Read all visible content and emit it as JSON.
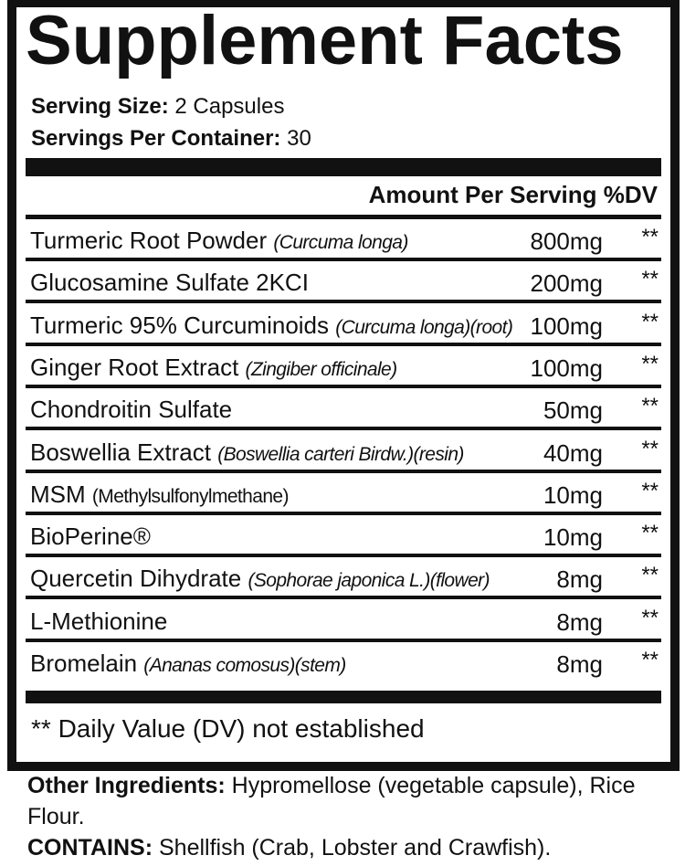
{
  "title": "Supplement Facts",
  "serving": {
    "size_label": "Serving Size:",
    "size_value": "2 Capsules",
    "per_container_label": "Servings Per Container:",
    "per_container_value": "30"
  },
  "header": "Amount Per Serving %DV",
  "rows": [
    {
      "name": "Turmeric Root Powder",
      "detail": "(Curcuma longa)",
      "amount": "800mg",
      "dv": "**"
    },
    {
      "name": "Glucosamine Sulfate 2KCI",
      "amount": "200mg",
      "dv": "**"
    },
    {
      "name": "Turmeric 95% Curcuminoids",
      "detail": "(Curcuma longa)(root)",
      "amount": "100mg",
      "dv": "**"
    },
    {
      "name": "Ginger Root Extract",
      "detail": "(Zingiber officinale)",
      "amount": "100mg",
      "dv": "**"
    },
    {
      "name": "Chondroitin Sulfate",
      "amount": "50mg",
      "dv": "**"
    },
    {
      "name": "Boswellia Extract",
      "detail": "(Boswellia carteri Birdw.)(resin)",
      "amount": "40mg",
      "dv": "**"
    },
    {
      "name": "MSM",
      "detail": "(Methylsulfonylmethane)",
      "detail_italic": false,
      "amount": "10mg",
      "dv": "**"
    },
    {
      "name": "BioPerine®",
      "amount": "10mg",
      "dv": "**"
    },
    {
      "name": "Quercetin Dihydrate",
      "detail": "(Sophorae japonica L.)(flower)",
      "amount": "8mg",
      "dv": "**"
    },
    {
      "name": "L-Methionine",
      "amount": "8mg",
      "dv": "**"
    },
    {
      "name": "Bromelain",
      "detail": "(Ananas comosus)(stem)",
      "amount": "8mg",
      "dv": "**"
    }
  ],
  "footnote": "** Daily Value (DV) not established",
  "other_ingredients": {
    "label": "Other Ingredients:",
    "text": "Hypromellose (vegetable capsule), Rice Flour."
  },
  "contains": {
    "label": "CONTAINS:",
    "text": "Shellfish (Crab, Lobster and Crawfish)."
  }
}
